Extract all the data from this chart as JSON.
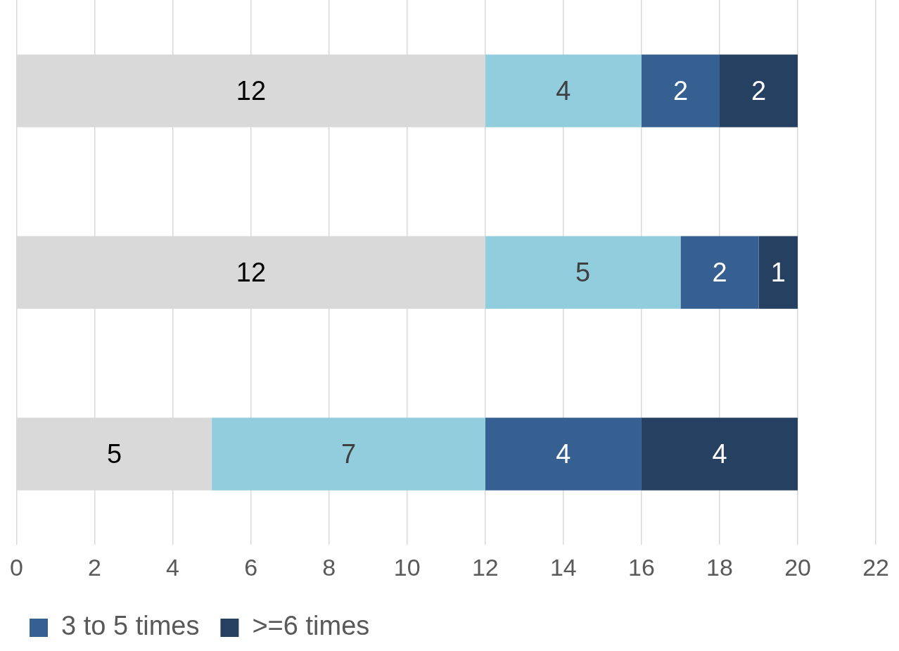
{
  "chart_data": {
    "type": "bar",
    "orientation": "horizontal",
    "stacked": true,
    "categories": [
      null,
      null,
      null
    ],
    "series": [
      {
        "color": "#d9d9d9",
        "values": [
          12,
          12,
          5
        ]
      },
      {
        "color": "#92cddd",
        "values": [
          4,
          5,
          7
        ]
      },
      {
        "name": "3 to 5 times",
        "color": "#366092",
        "values": [
          2,
          2,
          4
        ]
      },
      {
        "name": ">=6 times",
        "color": "#254061",
        "values": [
          2,
          1,
          4
        ]
      }
    ],
    "xlim": [
      0,
      22
    ],
    "xticks": [
      0,
      2,
      4,
      6,
      8,
      10,
      12,
      14,
      16,
      18,
      20,
      22
    ],
    "grid": "x",
    "legend": "bottom",
    "tick_labels": "x",
    "data_labels": true
  }
}
